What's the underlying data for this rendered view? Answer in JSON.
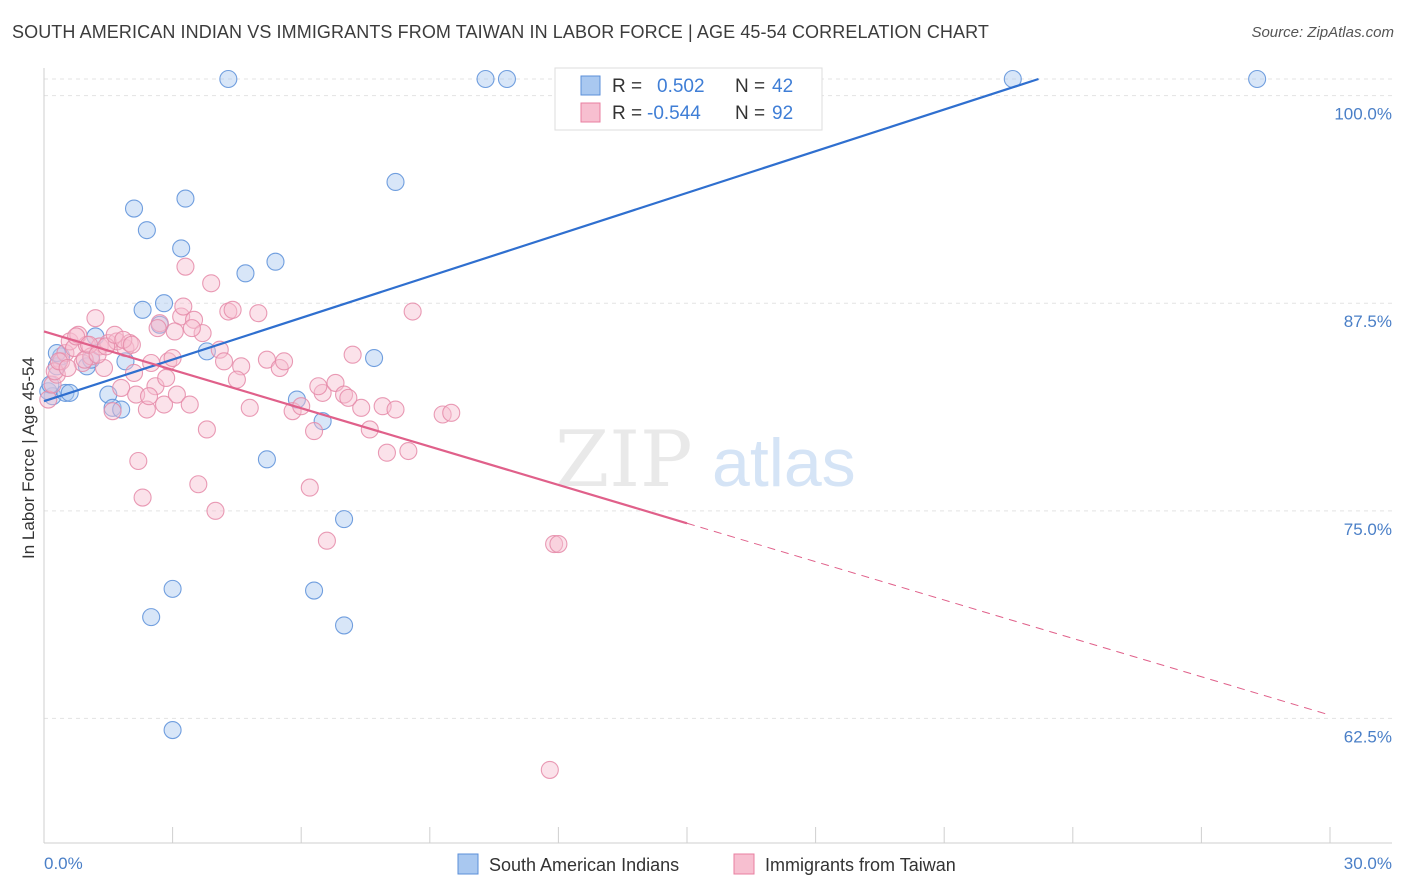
{
  "title": "SOUTH AMERICAN INDIAN VS IMMIGRANTS FROM TAIWAN IN LABOR FORCE | AGE 45-54 CORRELATION CHART",
  "source": "Source: ZipAtlas.com",
  "watermark": {
    "zip": "ZIP",
    "atlas": "atlas"
  },
  "legend_stats": [
    {
      "r_label": "R =",
      "r_value": "0.502",
      "n_label": "N =",
      "n_value": "42",
      "color": "#a9c8f0",
      "stroke": "#5b8fd9"
    },
    {
      "r_label": "R =",
      "r_value": "-0.544",
      "n_label": "N =",
      "n_value": "92",
      "color": "#f7bfd0",
      "stroke": "#e87fa0"
    }
  ],
  "colors": {
    "blue_fill": "#a9c8f0",
    "blue_stroke": "#5b8fd9",
    "blue_line": "#2f6fcf",
    "pink_fill": "#f7bfd0",
    "pink_stroke": "#e58aa8",
    "pink_line": "#e0608a",
    "tick_text": "#4a7fc7",
    "grid": "#e3e3e3"
  },
  "chart_data": {
    "type": "scatter",
    "title": "SOUTH AMERICAN INDIAN VS IMMIGRANTS FROM TAIWAN IN LABOR FORCE | AGE 45-54 CORRELATION CHART",
    "xlabel": "",
    "ylabel": "In Labor Force | Age 45-54",
    "xlim": [
      0,
      30
    ],
    "ylim": [
      55.0,
      101.0
    ],
    "x_tick_labels": [
      "0.0%",
      "30.0%"
    ],
    "y_ticks": [
      62.5,
      75.0,
      87.5,
      100.0
    ],
    "y_tick_labels": [
      "62.5%",
      "75.0%",
      "87.5%",
      "100.0%"
    ],
    "grid": true,
    "legend_position": "bottom",
    "series": [
      {
        "name": "South American Indians",
        "trend": {
          "x1": 0.0,
          "y1": 81.6,
          "x2": 23.2,
          "y2": 101.0,
          "dashed_from": null
        },
        "points": [
          [
            0.2,
            81.9
          ],
          [
            0.3,
            83.7
          ],
          [
            0.4,
            84.3
          ],
          [
            0.5,
            82.1
          ],
          [
            0.6,
            82.1
          ],
          [
            1.0,
            83.7
          ],
          [
            1.2,
            85.5
          ],
          [
            1.1,
            84.1
          ],
          [
            1.5,
            82.0
          ],
          [
            1.6,
            81.2
          ],
          [
            1.8,
            81.1
          ],
          [
            1.9,
            84.0
          ],
          [
            2.1,
            93.2
          ],
          [
            2.3,
            87.1
          ],
          [
            2.4,
            91.9
          ],
          [
            2.5,
            68.6
          ],
          [
            2.7,
            86.2
          ],
          [
            2.8,
            87.5
          ],
          [
            3.0,
            70.3
          ],
          [
            3.0,
            61.8
          ],
          [
            3.2,
            90.8
          ],
          [
            3.3,
            93.8
          ],
          [
            3.8,
            84.6
          ],
          [
            4.3,
            101.0
          ],
          [
            4.7,
            89.3
          ],
          [
            5.2,
            78.1
          ],
          [
            5.4,
            90.0
          ],
          [
            5.9,
            81.7
          ],
          [
            6.3,
            70.2
          ],
          [
            6.5,
            80.4
          ],
          [
            7.0,
            74.5
          ],
          [
            7.0,
            68.1
          ],
          [
            7.7,
            84.2
          ],
          [
            8.2,
            94.8
          ],
          [
            10.3,
            101.0
          ],
          [
            10.8,
            101.0
          ],
          [
            13.8,
            101.0
          ],
          [
            22.6,
            101.0
          ],
          [
            28.3,
            101.0
          ],
          [
            0.1,
            82.2
          ],
          [
            0.15,
            82.6
          ],
          [
            0.3,
            84.5
          ]
        ]
      },
      {
        "name": "Immigrants from Taiwan",
        "trend": {
          "x1": 0.0,
          "y1": 85.8,
          "x2": 30.0,
          "y2": 62.7,
          "dashed_from": 15.0
        },
        "points": [
          [
            0.1,
            81.7
          ],
          [
            0.2,
            82.6
          ],
          [
            0.3,
            83.2
          ],
          [
            0.4,
            84.0
          ],
          [
            0.5,
            84.5
          ],
          [
            0.6,
            85.2
          ],
          [
            0.7,
            84.8
          ],
          [
            0.8,
            85.6
          ],
          [
            0.9,
            83.9
          ],
          [
            1.0,
            85.0
          ],
          [
            1.1,
            84.3
          ],
          [
            1.2,
            86.6
          ],
          [
            1.3,
            84.9
          ],
          [
            1.4,
            83.6
          ],
          [
            1.5,
            85.1
          ],
          [
            1.6,
            81.0
          ],
          [
            1.7,
            85.2
          ],
          [
            1.8,
            82.4
          ],
          [
            1.9,
            84.8
          ],
          [
            2.0,
            85.1
          ],
          [
            2.1,
            83.3
          ],
          [
            2.2,
            78.0
          ],
          [
            2.3,
            75.8
          ],
          [
            2.4,
            81.1
          ],
          [
            2.5,
            83.9
          ],
          [
            2.6,
            82.5
          ],
          [
            2.7,
            86.3
          ],
          [
            2.8,
            81.4
          ],
          [
            2.9,
            84.0
          ],
          [
            3.0,
            84.2
          ],
          [
            3.1,
            82.0
          ],
          [
            3.2,
            86.7
          ],
          [
            3.3,
            89.7
          ],
          [
            3.4,
            81.4
          ],
          [
            3.5,
            86.5
          ],
          [
            3.6,
            76.6
          ],
          [
            3.7,
            85.7
          ],
          [
            3.8,
            79.9
          ],
          [
            3.9,
            88.7
          ],
          [
            4.0,
            75.0
          ],
          [
            4.1,
            84.7
          ],
          [
            4.2,
            84.0
          ],
          [
            4.3,
            87.0
          ],
          [
            4.4,
            87.1
          ],
          [
            4.6,
            83.7
          ],
          [
            4.8,
            81.2
          ],
          [
            5.0,
            86.9
          ],
          [
            5.2,
            84.1
          ],
          [
            5.5,
            83.6
          ],
          [
            5.8,
            81.0
          ],
          [
            6.0,
            81.3
          ],
          [
            6.2,
            76.4
          ],
          [
            6.3,
            79.8
          ],
          [
            6.5,
            82.1
          ],
          [
            6.6,
            73.2
          ],
          [
            6.8,
            82.7
          ],
          [
            7.0,
            82.0
          ],
          [
            7.2,
            84.4
          ],
          [
            7.4,
            81.2
          ],
          [
            7.9,
            81.3
          ],
          [
            8.0,
            78.5
          ],
          [
            8.2,
            81.1
          ],
          [
            8.5,
            78.6
          ],
          [
            8.6,
            87.0
          ],
          [
            9.3,
            80.8
          ],
          [
            9.5,
            80.9
          ],
          [
            11.9,
            73.0
          ],
          [
            12.0,
            73.0
          ],
          [
            11.8,
            59.4
          ],
          [
            0.25,
            83.4
          ],
          [
            0.35,
            84.0
          ],
          [
            0.55,
            83.6
          ],
          [
            0.75,
            85.5
          ],
          [
            0.95,
            84.1
          ],
          [
            1.05,
            85.0
          ],
          [
            1.25,
            84.4
          ],
          [
            1.45,
            84.9
          ],
          [
            1.65,
            85.6
          ],
          [
            1.85,
            85.3
          ],
          [
            2.05,
            85.0
          ],
          [
            2.15,
            82.0
          ],
          [
            2.45,
            81.9
          ],
          [
            2.65,
            86.0
          ],
          [
            2.85,
            83.0
          ],
          [
            3.05,
            85.8
          ],
          [
            3.25,
            87.3
          ],
          [
            3.45,
            86.0
          ],
          [
            4.5,
            82.9
          ],
          [
            5.6,
            84.0
          ],
          [
            6.4,
            82.5
          ],
          [
            7.1,
            81.8
          ],
          [
            7.6,
            79.9
          ]
        ]
      }
    ]
  },
  "bottom_legend": [
    {
      "label": "South American Indians"
    },
    {
      "label": "Immigrants from Taiwan"
    }
  ]
}
